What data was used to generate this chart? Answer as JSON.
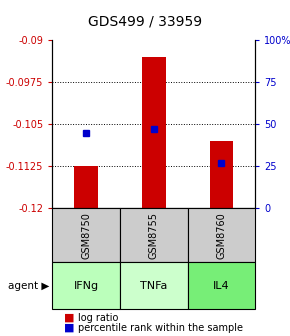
{
  "title": "GDS499 / 33959",
  "samples": [
    "GSM8750",
    "GSM8755",
    "GSM8760"
  ],
  "agents": [
    "IFNg",
    "TNFa",
    "IL4"
  ],
  "log_ratios": [
    -0.1125,
    -0.093,
    -0.108
  ],
  "baseline": -0.12,
  "percentile_ranks": [
    45,
    47,
    27
  ],
  "ylim_left": [
    -0.12,
    -0.09
  ],
  "yticks_left": [
    -0.12,
    -0.1125,
    -0.105,
    -0.0975,
    -0.09
  ],
  "ytick_labels_left": [
    "-0.12",
    "-0.1125",
    "-0.105",
    "-0.0975",
    "-0.09"
  ],
  "ylim_right": [
    0,
    100
  ],
  "yticks_right": [
    0,
    25,
    50,
    75,
    100
  ],
  "ytick_labels_right": [
    "0",
    "25",
    "50",
    "75",
    "100%"
  ],
  "bar_color": "#cc0000",
  "dot_color": "#0000cc",
  "agent_colors": [
    "#aaffaa",
    "#ccffcc",
    "#88ee88"
  ],
  "sample_bg_color": "#cccccc",
  "grid_color": "#888888",
  "left_label_color": "#cc0000",
  "right_label_color": "#0000cc"
}
